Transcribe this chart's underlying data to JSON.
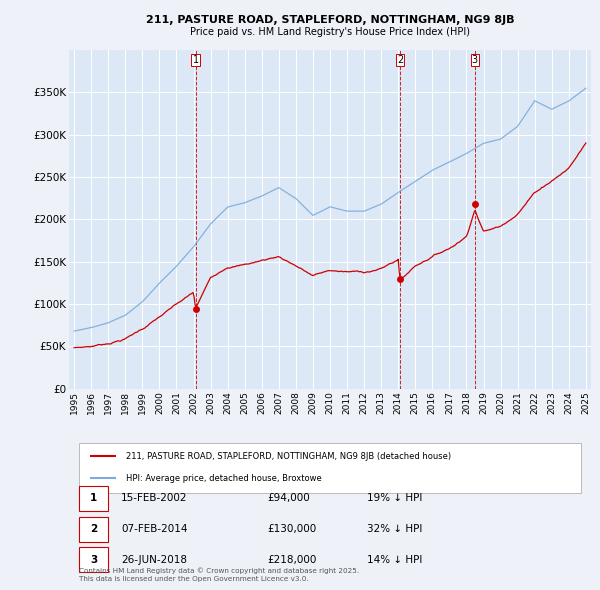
{
  "title1": "211, PASTURE ROAD, STAPLEFORD, NOTTINGHAM, NG9 8JB",
  "title2": "Price paid vs. HM Land Registry's House Price Index (HPI)",
  "background_color": "#eef2f8",
  "plot_background": "#dce8f5",
  "grid_color": "#ffffff",
  "sale_color": "#cc0000",
  "hpi_color": "#7aacdc",
  "ylim": [
    0,
    400000
  ],
  "yticks": [
    0,
    50000,
    100000,
    150000,
    200000,
    250000,
    300000,
    350000
  ],
  "ytick_labels": [
    "£0",
    "£50K",
    "£100K",
    "£150K",
    "£200K",
    "£250K",
    "£300K",
    "£350K"
  ],
  "legend_sale": "211, PASTURE ROAD, STAPLEFORD, NOTTINGHAM, NG9 8JB (detached house)",
  "legend_hpi": "HPI: Average price, detached house, Broxtowe",
  "transactions": [
    {
      "num": "1",
      "date": "15-FEB-2002",
      "price": 94000,
      "pct": "19%",
      "x_year": 2002.12
    },
    {
      "num": "2",
      "date": "07-FEB-2014",
      "price": 130000,
      "pct": "32%",
      "x_year": 2014.1
    },
    {
      "num": "3",
      "date": "26-JUN-2018",
      "price": 218000,
      "pct": "14%",
      "x_year": 2018.49
    }
  ],
  "footnote1": "Contains HM Land Registry data © Crown copyright and database right 2025.",
  "footnote2": "This data is licensed under the Open Government Licence v3.0.",
  "xlim": [
    1994.7,
    2025.3
  ],
  "xtick_years": [
    1995,
    1996,
    1997,
    1998,
    1999,
    2000,
    2001,
    2002,
    2003,
    2004,
    2005,
    2006,
    2007,
    2008,
    2009,
    2010,
    2011,
    2012,
    2013,
    2014,
    2015,
    2016,
    2017,
    2018,
    2019,
    2020,
    2021,
    2022,
    2023,
    2024,
    2025
  ]
}
